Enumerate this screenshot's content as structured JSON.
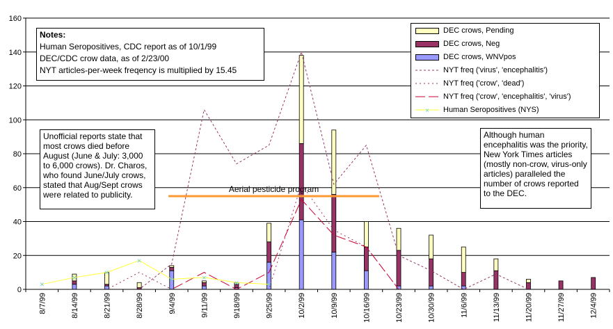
{
  "chart_data": {
    "type": "bar",
    "categories": [
      "8/7/99",
      "8/14/99",
      "8/21/99",
      "8/28/99",
      "9/4/99",
      "9/11/99",
      "9/18/99",
      "9/25/99",
      "10/2/99",
      "10/9/99",
      "10/16/99",
      "10/23/99",
      "10/30/99",
      "11/6/99",
      "11/13/99",
      "11/20/99",
      "11/27/99",
      "12/4/99"
    ],
    "ylim": [
      0,
      160
    ],
    "yticks": [
      0,
      20,
      40,
      60,
      80,
      100,
      120,
      140,
      160
    ],
    "grid": true,
    "series": [
      {
        "name": "DEC crows, Pending",
        "kind": "stacked-bar",
        "color": "#FFFFC0",
        "values": [
          0,
          4,
          7,
          3,
          1,
          1,
          1,
          11,
          52,
          38,
          15,
          13,
          14,
          15,
          7,
          2,
          0,
          0
        ]
      },
      {
        "name": "DEC crows, Neg",
        "kind": "stacked-bar",
        "color": "#993366",
        "values": [
          0,
          2,
          1,
          1,
          2,
          2,
          2,
          12,
          45,
          34,
          14,
          21,
          16,
          8,
          11,
          4,
          5,
          7
        ]
      },
      {
        "name": "DEC crows, WNVpos",
        "kind": "stacked-bar",
        "color": "#9999FF",
        "values": [
          0,
          3,
          2,
          0,
          11,
          2,
          1,
          16,
          41,
          22,
          11,
          2,
          2,
          2,
          0,
          0,
          0,
          0
        ]
      },
      {
        "name": "NYT freq ('virus', 'encephalitis')",
        "kind": "line",
        "color": "#993366",
        "dash": "3,3",
        "values": [
          0,
          0,
          0,
          0,
          15,
          106,
          74,
          85,
          140,
          62,
          85,
          20,
          11,
          0,
          9,
          0,
          0,
          0
        ]
      },
      {
        "name": "NYT freq ('crow', 'dead')",
        "kind": "line",
        "color": "#993366",
        "dash": "2,4",
        "values": [
          0,
          0,
          0,
          10,
          0,
          0,
          0,
          0,
          62,
          35,
          25,
          0,
          0,
          0,
          0,
          0,
          0,
          0
        ]
      },
      {
        "name": "NYT freq ('crow', 'encephalitis', 'virus')",
        "kind": "line",
        "color": "#CC0033",
        "dash": "14,5",
        "values": [
          0,
          0,
          0,
          0,
          0,
          10,
          0,
          10,
          53,
          32,
          25,
          0,
          0,
          0,
          0,
          0,
          0,
          0
        ]
      },
      {
        "name": "Human Seropositives (NYS)",
        "kind": "line-marker",
        "color": "#FFFF33",
        "marker_color": "#66CCCC",
        "values": [
          3,
          7,
          10,
          17,
          6,
          7,
          4,
          3,
          null,
          null,
          null,
          null,
          null,
          null,
          null,
          null,
          null,
          null
        ]
      }
    ],
    "annotation_line": {
      "label": "Aerial pesticide program",
      "y": 55,
      "x_from": 3.9,
      "x_to": 10.4,
      "color": "#FF9933"
    }
  },
  "notes": {
    "title": "Notes:",
    "lines": [
      "Human Seropositives, CDC report as of 10/1/99",
      "DEC/CDC crow data, as of 2/23/00",
      "NYT articles-per-week freqency is multiplied by 15.45"
    ]
  },
  "left_note": "Unofficial reports state that most crows died before August (June & July: 3,000 to 6,000 crows). Dr. Charos, who found June/July crows, stated that Aug/Sept crows were related to publicity.",
  "right_note": "Although human encephalitis was the priority, New York Times articles (mostly non-crow, virus-only articles) paralleled the number of crows reported to the DEC."
}
